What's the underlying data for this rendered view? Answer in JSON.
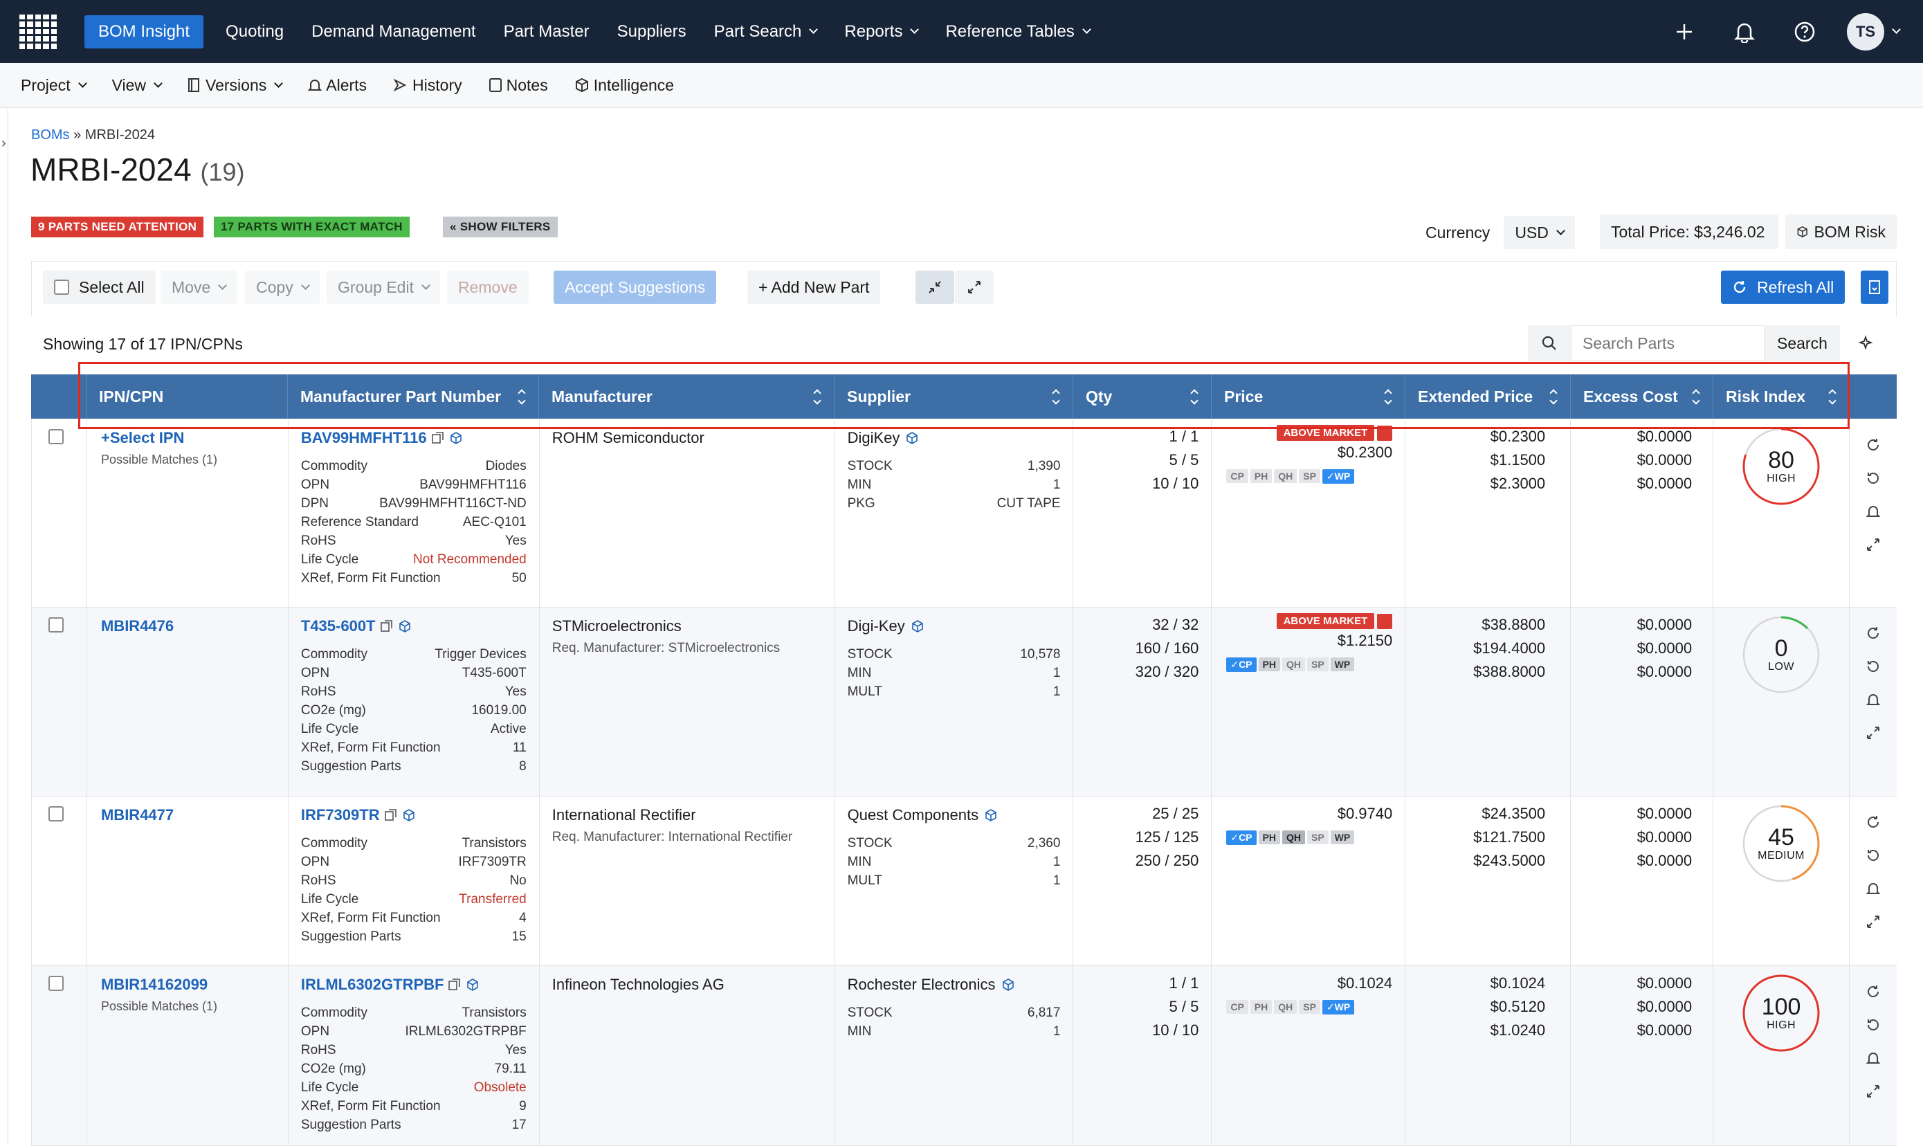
{
  "topnav": {
    "items": [
      "BOM Insight",
      "Quoting",
      "Demand Management",
      "Part Master",
      "Suppliers",
      "Part Search",
      "Reports",
      "Reference Tables"
    ],
    "avatar": "TS"
  },
  "secnav": {
    "project": "Project",
    "view": "View",
    "versions": "Versions",
    "alerts": "Alerts",
    "history": "History",
    "notes": "Notes",
    "intelligence": "Intelligence"
  },
  "breadcrumb": {
    "root": "BOMs",
    "sep": " » ",
    "current": "MRBI-2024"
  },
  "page": {
    "title": "MRBI-2024",
    "count": "(19)"
  },
  "badges": {
    "attention": "9 PARTS NEED ATTENTION",
    "exact": "17 PARTS WITH EXACT MATCH",
    "filters": "« SHOW FILTERS"
  },
  "currency": {
    "label": "Currency",
    "value": "USD"
  },
  "total_price": "Total Price: $3,246.02",
  "bom_risk": "BOM Risk",
  "toolbar": {
    "select_all": "Select All",
    "move": "Move",
    "copy": "Copy",
    "group_edit": "Group Edit",
    "remove": "Remove",
    "accept": "Accept Suggestions",
    "add_part": "+ Add New Part",
    "refresh": "Refresh All"
  },
  "showing": "Showing 17 of 17 IPN/CPNs",
  "search": {
    "placeholder": "Search Parts",
    "button": "Search"
  },
  "columns": [
    "IPN/CPN",
    "Manufacturer Part Number",
    "Manufacturer",
    "Supplier",
    "Qty",
    "Price",
    "Extended Price",
    "Excess Cost",
    "Risk Index"
  ],
  "rows": [
    {
      "ipn": "+Select IPN",
      "ipn_sub": "Possible Matches (1)",
      "mpn": "BAV99HMFHT116",
      "attrs": [
        [
          "Commodity",
          "Diodes"
        ],
        [
          "OPN",
          "BAV99HMFHT116"
        ],
        [
          "DPN",
          "BAV99HMFHT116CT-ND"
        ],
        [
          "Reference Standard",
          "AEC-Q101"
        ],
        [
          "RoHS",
          "Yes"
        ],
        [
          "Life Cycle",
          "Not Recommended"
        ],
        [
          "XRef, Form Fit Function",
          "50"
        ]
      ],
      "manufacturer": "ROHM Semiconductor",
      "req_mfr": "",
      "supplier": "DigiKey",
      "sup_attrs": [
        [
          "STOCK",
          "1,390"
        ],
        [
          "MIN",
          "1"
        ],
        [
          "PKG",
          "CUT TAPE"
        ]
      ],
      "qty": [
        "1 / 1",
        "5 / 5",
        "10 / 10"
      ],
      "above_market": "ABOVE MARKET",
      "price": "$0.2300",
      "tags": [
        "CP",
        "PH",
        "QH",
        "SP",
        "✓WP"
      ],
      "ext": [
        "$0.2300",
        "$1.1500",
        "$2.3000"
      ],
      "excess": [
        "$0.0000",
        "$0.0000",
        "$0.0000"
      ],
      "risk": "80",
      "risk_label": "HIGH"
    },
    {
      "ipn": "MBIR4476",
      "ipn_sub": "",
      "mpn": "T435-600T",
      "attrs": [
        [
          "Commodity",
          "Trigger Devices"
        ],
        [
          "OPN",
          "T435-600T"
        ],
        [
          "RoHS",
          "Yes"
        ],
        [
          "CO2e (mg)",
          "16019.00"
        ],
        [
          "Life Cycle",
          "Active"
        ],
        [
          "XRef, Form Fit Function",
          "11"
        ],
        [
          "Suggestion Parts",
          "8"
        ]
      ],
      "manufacturer": "STMicroelectronics",
      "req_mfr": "Req. Manufacturer: STMicroelectronics",
      "supplier": "Digi-Key",
      "sup_attrs": [
        [
          "STOCK",
          "10,578"
        ],
        [
          "MIN",
          "1"
        ],
        [
          "MULT",
          "1"
        ]
      ],
      "qty": [
        "32 / 32",
        "160 / 160",
        "320 / 320"
      ],
      "above_market": "ABOVE MARKET",
      "price": "$1.2150",
      "tags": [
        "✓CP",
        "PH",
        "QH",
        "SP",
        "WP"
      ],
      "ext": [
        "$38.8800",
        "$194.4000",
        "$388.8000"
      ],
      "excess": [
        "$0.0000",
        "$0.0000",
        "$0.0000"
      ],
      "risk": "0",
      "risk_label": "LOW"
    },
    {
      "ipn": "MBIR4477",
      "ipn_sub": "",
      "mpn": "IRF7309TR",
      "attrs": [
        [
          "Commodity",
          "Transistors"
        ],
        [
          "OPN",
          "IRF7309TR"
        ],
        [
          "RoHS",
          "No"
        ],
        [
          "Life Cycle",
          "Transferred"
        ],
        [
          "XRef, Form Fit Function",
          "4"
        ],
        [
          "Suggestion Parts",
          "15"
        ]
      ],
      "manufacturer": "International Rectifier",
      "req_mfr": "Req. Manufacturer: International Rectifier",
      "supplier": "Quest Components",
      "sup_attrs": [
        [
          "STOCK",
          "2,360"
        ],
        [
          "MIN",
          "1"
        ],
        [
          "MULT",
          "1"
        ]
      ],
      "qty": [
        "25 / 25",
        "125 / 125",
        "250 / 250"
      ],
      "above_market": "",
      "price": "$0.9740",
      "tags": [
        "✓CP",
        "PH",
        "QH",
        "SP",
        "WP"
      ],
      "ext": [
        "$24.3500",
        "$121.7500",
        "$243.5000"
      ],
      "excess": [
        "$0.0000",
        "$0.0000",
        "$0.0000"
      ],
      "risk": "45",
      "risk_label": "MEDIUM"
    },
    {
      "ipn": "MBIR14162099",
      "ipn_sub": "Possible Matches (1)",
      "mpn": "IRLML6302GTRPBF",
      "attrs": [
        [
          "Commodity",
          "Transistors"
        ],
        [
          "OPN",
          "IRLML6302GTRPBF"
        ],
        [
          "RoHS",
          "Yes"
        ],
        [
          "CO2e (mg)",
          "79.11"
        ],
        [
          "Life Cycle",
          "Obsolete"
        ],
        [
          "XRef, Form Fit Function",
          "9"
        ],
        [
          "Suggestion Parts",
          "17"
        ]
      ],
      "manufacturer": "Infineon Technologies AG",
      "req_mfr": "",
      "supplier": "Rochester Electronics",
      "sup_attrs": [
        [
          "STOCK",
          "6,817"
        ],
        [
          "MIN",
          "1"
        ]
      ],
      "qty": [
        "1 / 1",
        "5 / 5",
        "10 / 10"
      ],
      "above_market": "",
      "price": "$0.1024",
      "tags": [
        "CP",
        "PH",
        "QH",
        "SP",
        "✓WP"
      ],
      "ext": [
        "$0.1024",
        "$0.5120",
        "$1.0240"
      ],
      "excess": [
        "$0.0000",
        "$0.0000",
        "$0.0000"
      ],
      "risk": "100",
      "risk_label": "HIGH"
    }
  ],
  "colors": {
    "nav": "#182438",
    "accent": "#1e6fd0",
    "header": "#3d6fa6",
    "attention": "#d93a32",
    "exact": "#4cbb4c",
    "high": "#e0342a",
    "low": "#3cb44b",
    "medium": "#f0903a"
  }
}
